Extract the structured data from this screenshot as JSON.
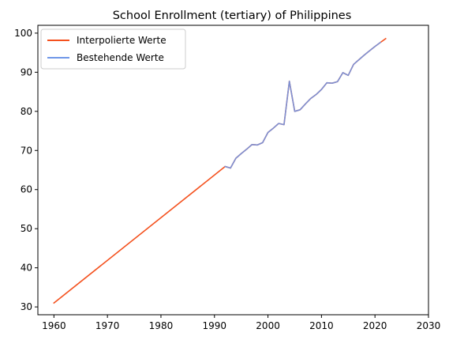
{
  "chart_data": {
    "type": "line",
    "title": "School Enrollment (tertiary) of Philippines",
    "xlabel": "",
    "ylabel": "",
    "xlim": [
      1957,
      2030
    ],
    "ylim": [
      28,
      102
    ],
    "xticks": [
      1960,
      1970,
      1980,
      1990,
      2000,
      2010,
      2020,
      2030
    ],
    "yticks": [
      30,
      40,
      50,
      60,
      70,
      80,
      90,
      100
    ],
    "grid": false,
    "legend_position": "upper left",
    "series": [
      {
        "name": "Interpolierte Werte",
        "color": "#f4511e",
        "x": [
          1960,
          1992,
          1993,
          1994,
          1995,
          1996,
          1997,
          1998,
          1999,
          2000,
          2001,
          2002,
          2003,
          2004,
          2005,
          2006,
          2007,
          2008,
          2009,
          2010,
          2011,
          2012,
          2013,
          2014,
          2015,
          2016,
          2017,
          2018,
          2019,
          2020,
          2021,
          2022
        ],
        "y": [
          31.0,
          65.9,
          65.5,
          68.0,
          69.2,
          70.3,
          71.5,
          71.4,
          72.0,
          74.6,
          75.7,
          76.9,
          76.6,
          87.7,
          80.0,
          80.4,
          81.9,
          83.3,
          84.3,
          85.6,
          87.3,
          87.2,
          87.6,
          89.9,
          89.2,
          92.0,
          93.2,
          94.4,
          95.5,
          96.6,
          97.6,
          98.6
        ]
      },
      {
        "name": "Bestehende Werte",
        "color": "#6f97e8",
        "x": [
          1992,
          1993,
          1994,
          1995,
          1996,
          1997,
          1998,
          1999,
          2000,
          2001,
          2002,
          2003,
          2004,
          2005,
          2006,
          2007,
          2008,
          2009,
          2010,
          2011,
          2012,
          2013,
          2014,
          2015,
          2016,
          2017,
          2018,
          2019,
          2020,
          2021
        ],
        "y": [
          65.9,
          65.5,
          68.0,
          69.2,
          70.3,
          71.5,
          71.4,
          72.0,
          74.6,
          75.7,
          76.9,
          76.6,
          87.7,
          80.0,
          80.4,
          81.9,
          83.3,
          84.3,
          85.6,
          87.3,
          87.2,
          87.6,
          89.9,
          89.2,
          92.0,
          93.2,
          94.4,
          95.5,
          96.6,
          97.6
        ]
      }
    ]
  }
}
